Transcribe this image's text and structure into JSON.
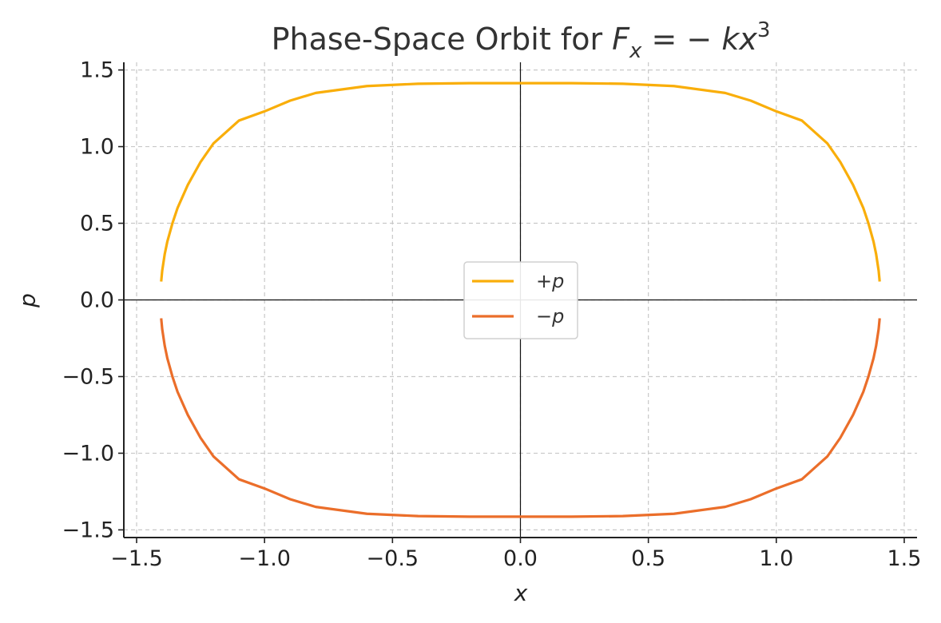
{
  "chart_data": {
    "type": "line",
    "title": "Phase-Space Orbit for F_x = −kx³",
    "title_parts": {
      "prefix": "Phase-Space Orbit for ",
      "F": "F",
      "sub": "x",
      "eq": " = − ",
      "k": "kx",
      "exp": "3"
    },
    "xlabel": "x",
    "ylabel": "p",
    "xlim": [
      -1.55,
      1.55
    ],
    "ylim": [
      -1.55,
      1.55
    ],
    "xticks": [
      -1.5,
      -1.0,
      -0.5,
      0.0,
      0.5,
      1.0,
      1.5
    ],
    "yticks": [
      -1.5,
      -1.0,
      -0.5,
      0.0,
      0.5,
      1.0,
      1.5
    ],
    "xtick_labels": [
      "−1.5",
      "−1.0",
      "−0.5",
      "0.0",
      "0.5",
      "1.0",
      "1.5"
    ],
    "ytick_labels": [
      "−1.5",
      "−1.0",
      "−0.5",
      "0.0",
      "0.5",
      "1.0",
      "1.5"
    ],
    "grid": true,
    "legend_position": "center",
    "reference_lines": {
      "x0": true,
      "y0": true
    },
    "series": [
      {
        "name": "+p",
        "color": "#F9AE0A",
        "x": [
          -1.404,
          -1.4,
          -1.39,
          -1.38,
          -1.36,
          -1.34,
          -1.3,
          -1.25,
          -1.2,
          -1.1,
          -1.0,
          -0.9,
          -0.8,
          -0.6,
          -0.4,
          -0.2,
          0.0,
          0.2,
          0.4,
          0.6,
          0.8,
          0.9,
          1.0,
          1.1,
          1.2,
          1.25,
          1.3,
          1.34,
          1.36,
          1.38,
          1.39,
          1.4,
          1.404
        ],
        "y": [
          0.12,
          0.19,
          0.3,
          0.38,
          0.5,
          0.6,
          0.75,
          0.9,
          1.02,
          1.17,
          1.23,
          1.3,
          1.35,
          1.395,
          1.41,
          1.414,
          1.414,
          1.414,
          1.41,
          1.395,
          1.35,
          1.3,
          1.23,
          1.17,
          1.02,
          0.9,
          0.75,
          0.6,
          0.5,
          0.38,
          0.3,
          0.19,
          0.12
        ]
      },
      {
        "name": "−p",
        "color": "#EB6E2A",
        "x": [
          -1.404,
          -1.4,
          -1.39,
          -1.38,
          -1.36,
          -1.34,
          -1.3,
          -1.25,
          -1.2,
          -1.1,
          -1.0,
          -0.9,
          -0.8,
          -0.6,
          -0.4,
          -0.2,
          0.0,
          0.2,
          0.4,
          0.6,
          0.8,
          0.9,
          1.0,
          1.1,
          1.2,
          1.25,
          1.3,
          1.34,
          1.36,
          1.38,
          1.39,
          1.4,
          1.404
        ],
        "y": [
          -0.12,
          -0.19,
          -0.3,
          -0.38,
          -0.5,
          -0.6,
          -0.75,
          -0.9,
          -1.02,
          -1.17,
          -1.23,
          -1.3,
          -1.35,
          -1.395,
          -1.41,
          -1.414,
          -1.414,
          -1.414,
          -1.41,
          -1.395,
          -1.35,
          -1.3,
          -1.23,
          -1.17,
          -1.02,
          -0.9,
          -0.75,
          -0.6,
          -0.5,
          -0.38,
          -0.3,
          -0.19,
          -0.12
        ]
      }
    ]
  }
}
